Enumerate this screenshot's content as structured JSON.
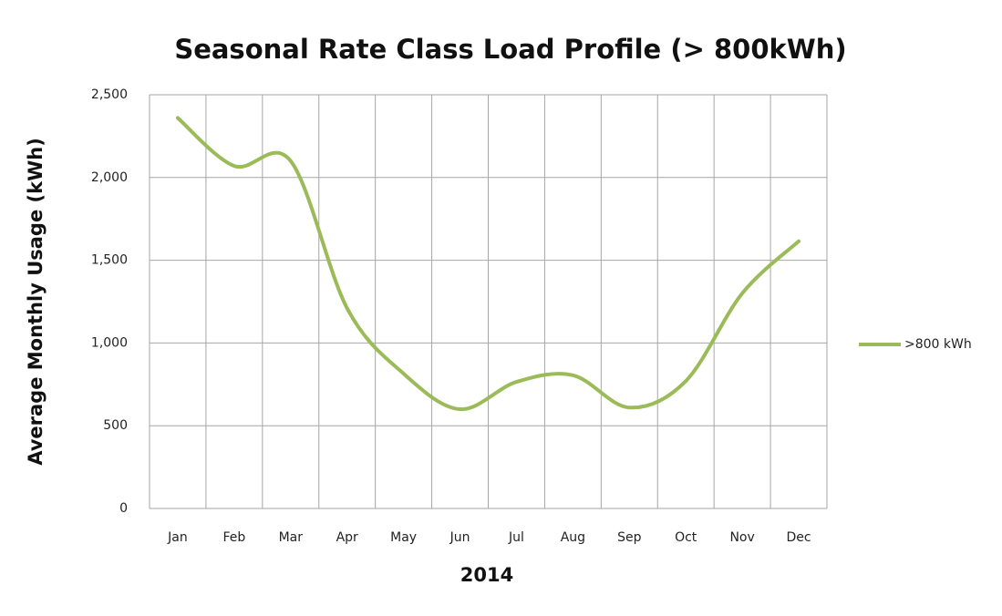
{
  "chart_data": {
    "type": "line",
    "title": "Seasonal Rate Class Load Profile (> 800kWh)",
    "x_label": "2014",
    "y_label": "Average Monthly Usage (kWh)",
    "categories": [
      "Jan",
      "Feb",
      "Mar",
      "Apr",
      "May",
      "Jun",
      "Jul",
      "Aug",
      "Sep",
      "Oct",
      "Nov",
      "Dec"
    ],
    "series": [
      {
        "name": ">800 kWh",
        "color": "#9bbb59",
        "values": [
          2360,
          2070,
          2100,
          1210,
          815,
          600,
          765,
          805,
          610,
          770,
          1300,
          1615
        ]
      }
    ],
    "ylim": [
      0,
      2500
    ],
    "yticks": [
      0,
      500,
      {
        "value": 1000,
        "label": "1,000"
      },
      {
        "value": 1500,
        "label": "1,500"
      },
      {
        "value": 2000,
        "label": "2,000"
      },
      {
        "value": 2500,
        "label": "2,500"
      }
    ],
    "grid": true,
    "smooth": true,
    "legend": "right"
  }
}
